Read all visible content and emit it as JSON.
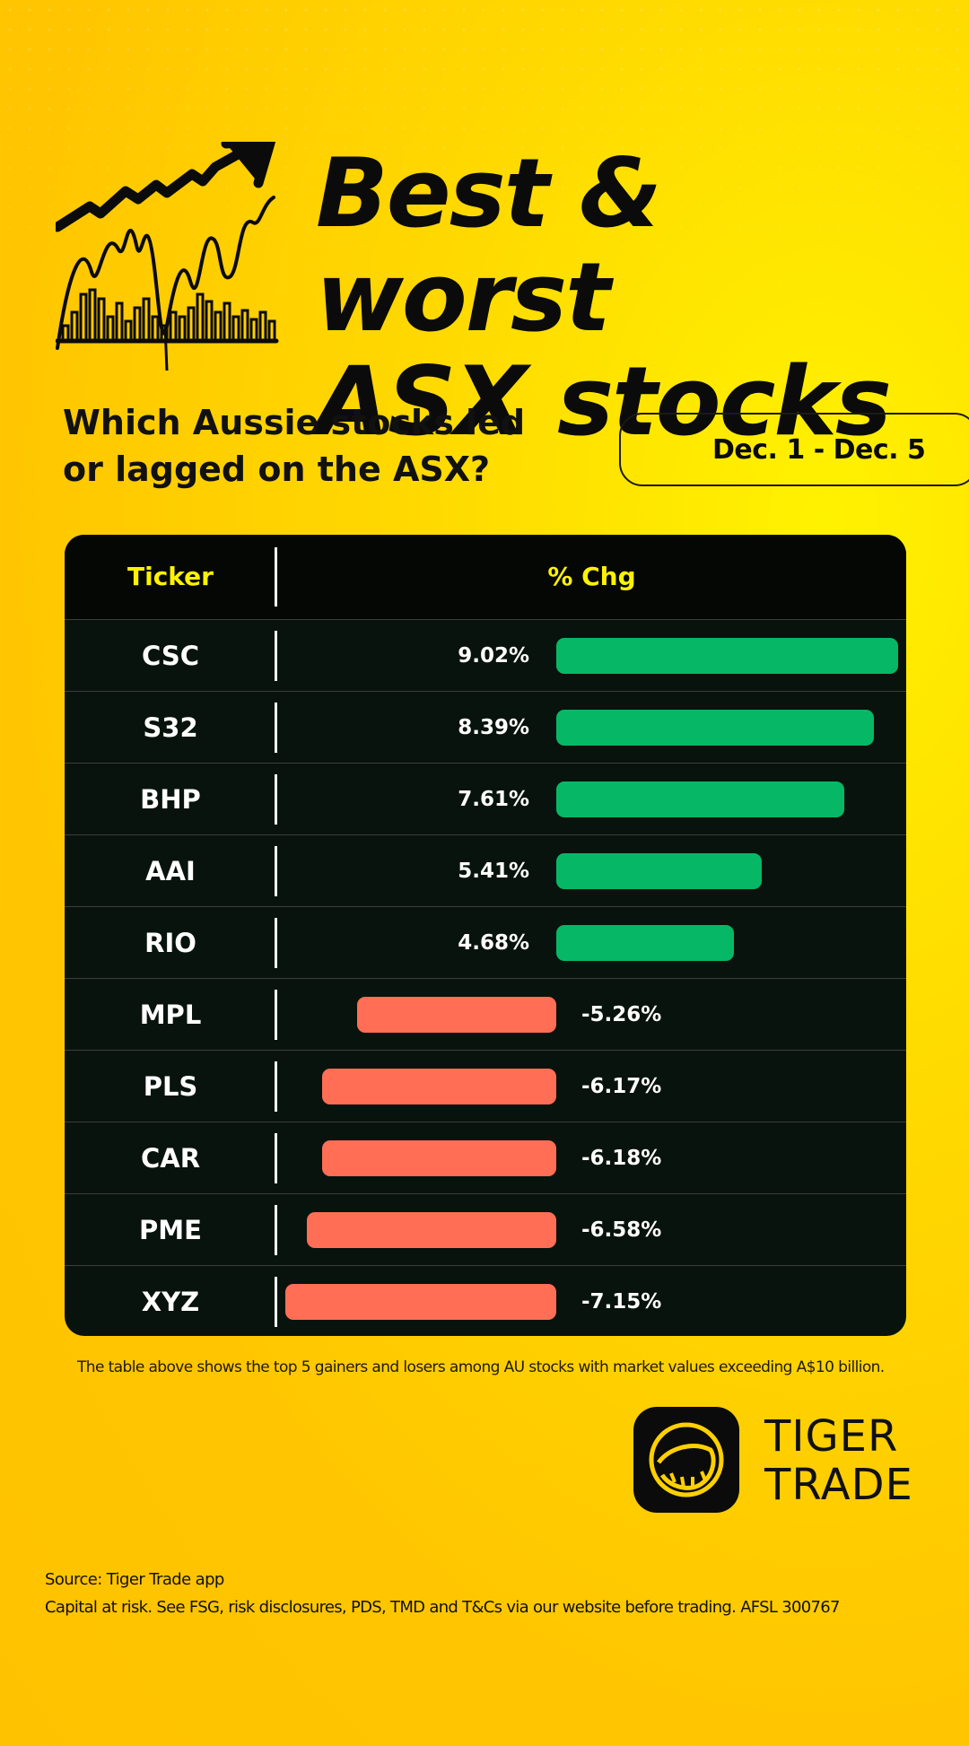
{
  "header": {
    "title_line1": "Best & worst",
    "title_line2": "ASX stocks",
    "subtitle_line1": "Which Aussie stocks led",
    "subtitle_line2": "or lagged on the ASX?",
    "date_range": "Dec. 1 - Dec. 5"
  },
  "table": {
    "col_ticker": "Ticker",
    "col_change": "% Chg"
  },
  "chart_data": {
    "type": "bar",
    "title": "",
    "categories": [
      "CSC",
      "S32",
      "BHP",
      "AAI",
      "RIO",
      "MPL",
      "PLS",
      "CAR",
      "PME",
      "XYZ"
    ],
    "values": [
      9.02,
      8.39,
      7.61,
      5.41,
      4.68,
      -5.26,
      -6.17,
      -6.18,
      -6.58,
      -7.15
    ],
    "labels": [
      "9.02%",
      "8.39%",
      "7.61%",
      "5.41%",
      "4.68%",
      "-5.26%",
      "-6.17%",
      "-6.18%",
      "-6.58%",
      "-7.15%"
    ],
    "series_colors": {
      "positive": "#06b866",
      "negative": "#ff6e55"
    },
    "orientation": "horizontal",
    "xlabel": "% Chg",
    "ylabel": "Ticker"
  },
  "footnote": "The table above shows the top 5 gainers and losers among AU stocks with market values exceeding A$10 billion.",
  "brand": {
    "line1": "TIGER",
    "line2": "TRADE",
    "icon": "tiger-trade-logo-icon"
  },
  "source": "Source: Tiger Trade app",
  "disclaimer": "Capital at risk. See FSG, risk disclosures, PDS, TMD and T&Cs via our website before trading. AFSL 300767",
  "colors": {
    "background": "#ffd400",
    "table_bg": "#08130d",
    "header_text": "#fff200"
  }
}
